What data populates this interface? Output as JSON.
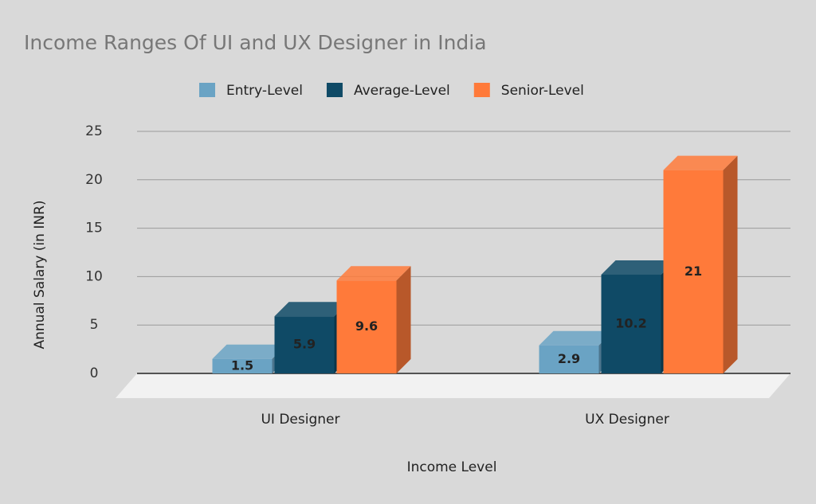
{
  "chart_data": {
    "type": "bar3d",
    "title": "Income Ranges Of UI and UX Designer in India",
    "x_label": "Income Level",
    "y_label": "Annual Salary (in INR)",
    "categories": [
      "UI Designer",
      "UX Designer"
    ],
    "series": [
      {
        "name": "Entry-Level",
        "color": "#6aa3c4",
        "values": [
          1.5,
          2.9
        ]
      },
      {
        "name": "Average-Level",
        "color": "#0f4a66",
        "values": [
          5.9,
          10.2
        ]
      },
      {
        "name": "Senior-Level",
        "color": "#ff7a3a",
        "values": [
          9.6,
          21
        ]
      }
    ],
    "ylim": [
      0,
      25
    ],
    "yticks": [
      0,
      5,
      10,
      15,
      20,
      25
    ],
    "grid": true
  }
}
